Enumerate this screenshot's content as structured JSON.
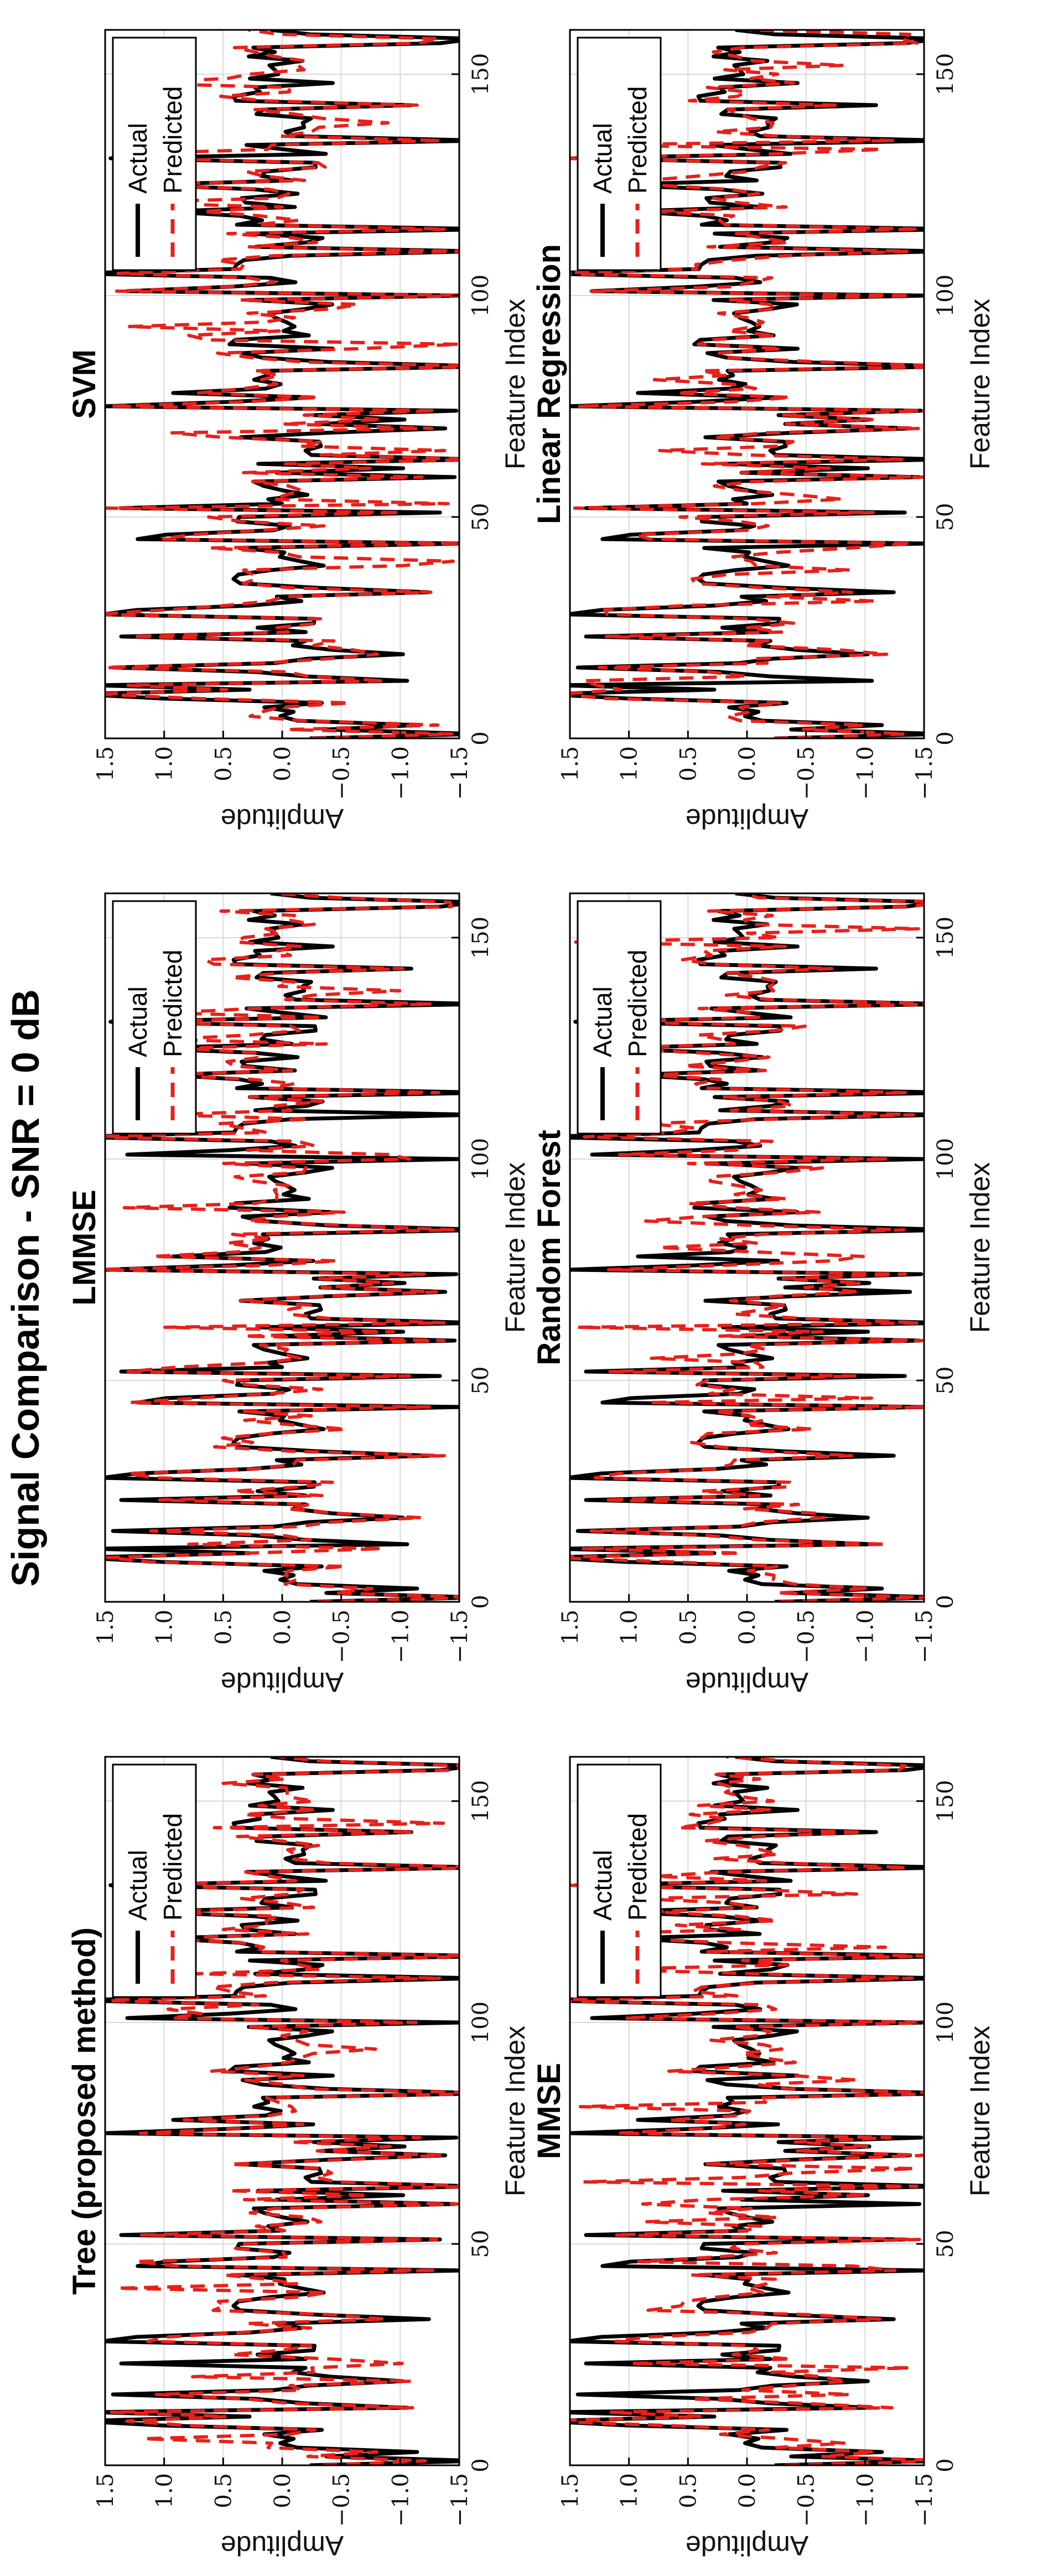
{
  "figure_title": "Signal Comparison - SNR = 0 dB",
  "chart_data": [
    {
      "type": "line",
      "title": "Tree (proposed method)",
      "xlabel": "Feature Index",
      "ylabel": "Amplitude",
      "xlim": [
        0,
        160
      ],
      "ylim": [
        -1.5,
        1.5
      ],
      "x_ticks": [
        0,
        50,
        100,
        150
      ],
      "y_ticks": [
        1.5,
        1.0,
        0.5,
        0.0,
        -0.5,
        -1.0,
        -1.5
      ],
      "y_tick_labels": [
        "1.5",
        "1.0",
        "0.5",
        "0.0",
        "−0.5",
        "−1.0",
        "−1.5"
      ],
      "grid": true,
      "legend": "top-right",
      "series": [
        {
          "name": "Actual",
          "seed": 11
        },
        {
          "name": "Predicted",
          "seed": 101
        }
      ]
    },
    {
      "type": "line",
      "title": "MMSE",
      "xlabel": "Feature Index",
      "ylabel": "Amplitude",
      "xlim": [
        0,
        160
      ],
      "ylim": [
        -1.5,
        1.5
      ],
      "x_ticks": [
        0,
        50,
        100,
        150
      ],
      "y_ticks": [
        1.5,
        1.0,
        0.5,
        0.0,
        -0.5,
        -1.0,
        -1.5
      ],
      "y_tick_labels": [
        "1.5",
        "1.0",
        "0.5",
        "0.0",
        "−0.5",
        "−1.0",
        "−1.5"
      ],
      "grid": true,
      "legend": "top-right",
      "series": [
        {
          "name": "Actual",
          "seed": 11
        },
        {
          "name": "Predicted",
          "seed": 202
        }
      ]
    },
    {
      "type": "line",
      "title": "LMMSE",
      "xlabel": "Feature Index",
      "ylabel": "Amplitude",
      "xlim": [
        0,
        160
      ],
      "ylim": [
        -1.5,
        1.5
      ],
      "x_ticks": [
        0,
        50,
        100,
        150
      ],
      "y_ticks": [
        1.5,
        1.0,
        0.5,
        0.0,
        -0.5,
        -1.0,
        -1.5
      ],
      "y_tick_labels": [
        "1.5",
        "1.0",
        "0.5",
        "0.0",
        "−0.5",
        "−1.0",
        "−1.5"
      ],
      "grid": true,
      "legend": "top-right",
      "series": [
        {
          "name": "Actual",
          "seed": 11
        },
        {
          "name": "Predicted",
          "seed": 303
        }
      ]
    },
    {
      "type": "line",
      "title": "Random Forest",
      "xlabel": "Feature Index",
      "ylabel": "Amplitude",
      "xlim": [
        0,
        160
      ],
      "ylim": [
        -1.5,
        1.5
      ],
      "x_ticks": [
        0,
        50,
        100,
        150
      ],
      "y_ticks": [
        1.5,
        1.0,
        0.5,
        0.0,
        -0.5,
        -1.0,
        -1.5
      ],
      "y_tick_labels": [
        "1.5",
        "1.0",
        "0.5",
        "0.0",
        "−0.5",
        "−1.0",
        "−1.5"
      ],
      "grid": true,
      "legend": "top-right",
      "series": [
        {
          "name": "Actual",
          "seed": 11
        },
        {
          "name": "Predicted",
          "seed": 404
        }
      ]
    },
    {
      "type": "line",
      "title": "SVM",
      "xlabel": "Feature Index",
      "ylabel": "Amplitude",
      "xlim": [
        0,
        160
      ],
      "ylim": [
        -1.5,
        1.5
      ],
      "x_ticks": [
        0,
        50,
        100,
        150
      ],
      "y_ticks": [
        1.5,
        1.0,
        0.5,
        0.0,
        -0.5,
        -1.0,
        -1.5
      ],
      "y_tick_labels": [
        "1.5",
        "1.0",
        "0.5",
        "0.0",
        "−0.5",
        "−1.0",
        "−1.5"
      ],
      "grid": true,
      "legend": "top-right",
      "series": [
        {
          "name": "Actual",
          "seed": 11
        },
        {
          "name": "Predicted",
          "seed": 505
        }
      ]
    },
    {
      "type": "line",
      "title": "Linear Regression",
      "xlabel": "Feature Index",
      "ylabel": "Amplitude",
      "xlim": [
        0,
        160
      ],
      "ylim": [
        -1.5,
        1.5
      ],
      "x_ticks": [
        0,
        50,
        100,
        150
      ],
      "y_ticks": [
        1.5,
        1.0,
        0.5,
        0.0,
        -0.5,
        -1.0,
        -1.5
      ],
      "y_tick_labels": [
        "1.5",
        "1.0",
        "0.5",
        "0.0",
        "−0.5",
        "−1.0",
        "−1.5"
      ],
      "grid": true,
      "legend": "top-right",
      "series": [
        {
          "name": "Actual",
          "seed": 11
        },
        {
          "name": "Predicted",
          "seed": 606
        }
      ]
    }
  ],
  "colors": {
    "actual": "#000000",
    "predicted": "#e8201a",
    "grid": "#d9d9d9"
  }
}
